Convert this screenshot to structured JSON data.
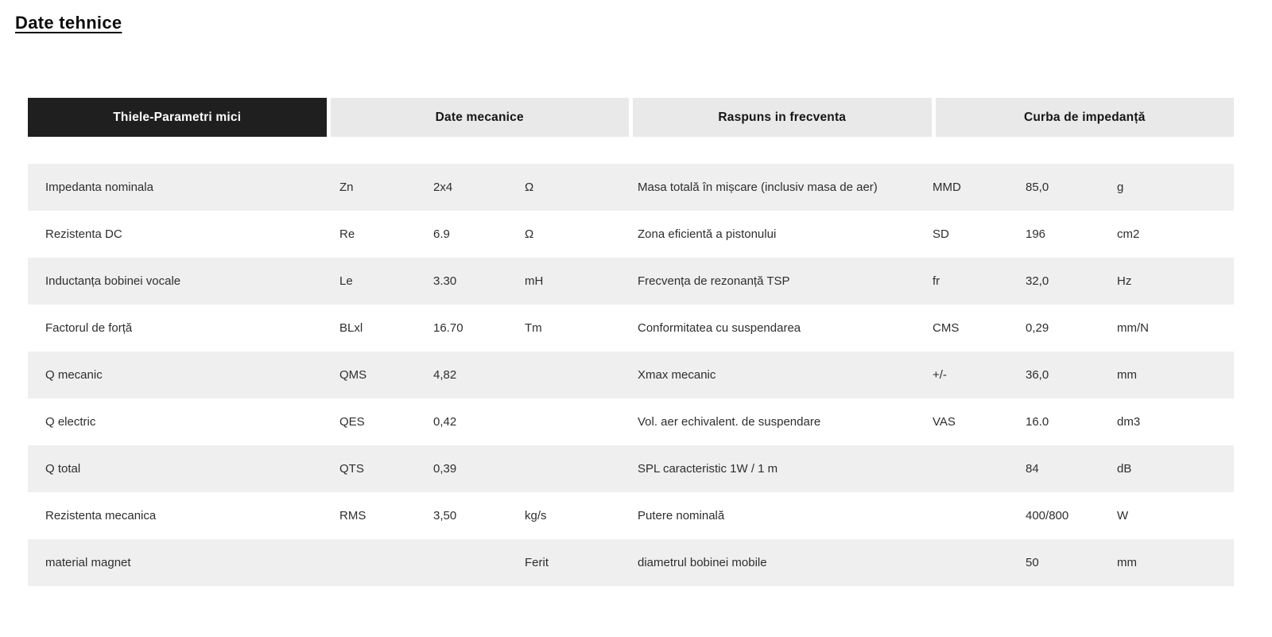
{
  "page_title": "Date tehnice",
  "tabs": [
    {
      "label": "Thiele-Parametri mici",
      "active": true
    },
    {
      "label": "Date mecanice",
      "active": false
    },
    {
      "label": "Raspuns in frecventa",
      "active": false
    },
    {
      "label": "Curba de impedanță",
      "active": false
    }
  ],
  "colors": {
    "active_tab_bg": "#1f1f1f",
    "active_tab_text": "#ffffff",
    "inactive_tab_bg": "#e9e9e9",
    "row_stripe_bg": "#efefef",
    "body_text": "#2e2e2e"
  },
  "table": {
    "rows": [
      {
        "left": {
          "label": "Impedanta nominala",
          "symbol": "Zn",
          "value": "2x4",
          "unit": "Ω"
        },
        "right": {
          "label": "Masa totală în mișcare (inclusiv masa de aer)",
          "symbol": "MMD",
          "value": "85,0",
          "unit": "g"
        }
      },
      {
        "left": {
          "label": "Rezistenta DC",
          "symbol": "Re",
          "value": "6.9",
          "unit": "Ω"
        },
        "right": {
          "label": "Zona eficientă a pistonului",
          "symbol": "SD",
          "value": "196",
          "unit": "cm2"
        }
      },
      {
        "left": {
          "label": "Inductanța bobinei vocale",
          "symbol": "Le",
          "value": "3.30",
          "unit": "mH"
        },
        "right": {
          "label": "Frecvența de rezonanță TSP",
          "symbol": "fr",
          "value": "32,0",
          "unit": "Hz"
        }
      },
      {
        "left": {
          "label": "Factorul de forță",
          "symbol": "BLxl",
          "value": "16.70",
          "unit": "Tm"
        },
        "right": {
          "label": "Conformitatea cu suspendarea",
          "symbol": "CMS",
          "value": "0,29",
          "unit": "mm/N"
        }
      },
      {
        "left": {
          "label": "Q mecanic",
          "symbol": "QMS",
          "value": "4,82",
          "unit": ""
        },
        "right": {
          "label": "Xmax mecanic",
          "symbol": "+/-",
          "value": "36,0",
          "unit": "mm"
        }
      },
      {
        "left": {
          "label": "Q electric",
          "symbol": "QES",
          "value": "0,42",
          "unit": ""
        },
        "right": {
          "label": "Vol. aer echivalent. de suspendare",
          "symbol": "VAS",
          "value": "16.0",
          "unit": "dm3"
        }
      },
      {
        "left": {
          "label": "Q total",
          "symbol": "QTS",
          "value": "0,39",
          "unit": ""
        },
        "right": {
          "label": "SPL caracteristic 1W / 1 m",
          "symbol": "",
          "value": "84",
          "unit": "dB"
        }
      },
      {
        "left": {
          "label": "Rezistenta mecanica",
          "symbol": "RMS",
          "value": "3,50",
          "unit": "kg/s"
        },
        "right": {
          "label": "Putere nominală",
          "symbol": "",
          "value": "400/800",
          "unit": "W"
        }
      },
      {
        "left": {
          "label": "material magnet",
          "symbol": "",
          "value": "",
          "unit": "Ferit"
        },
        "right": {
          "label": "diametrul bobinei mobile",
          "symbol": "",
          "value": "50",
          "unit": "mm"
        }
      }
    ]
  }
}
